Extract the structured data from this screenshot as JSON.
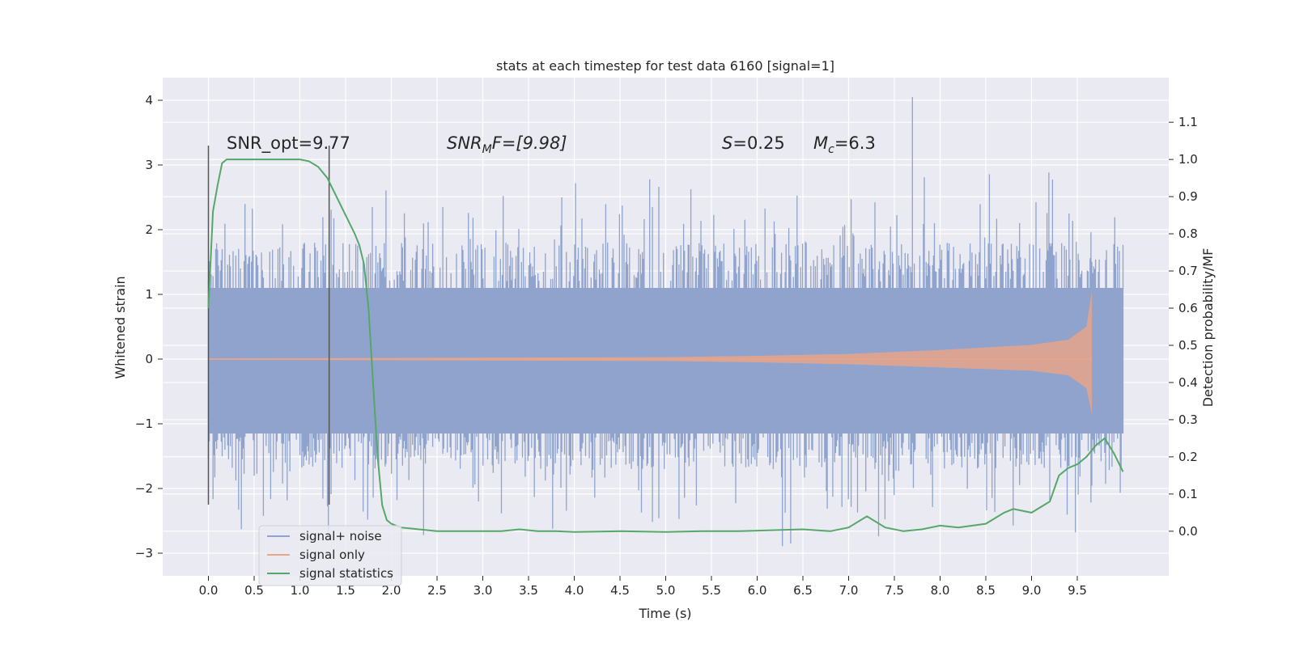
{
  "chart_data": {
    "type": "line",
    "title": "stats at each timestep for test data 6160 [signal=1]",
    "xlabel": "Time (s)",
    "ylabel": "Whitened strain",
    "y2label": "Detection probability/MF",
    "xlim": [
      -0.5,
      10.5
    ],
    "ylim": [
      -3.35,
      4.35
    ],
    "y2lim": [
      -0.12,
      1.22
    ],
    "x_ticks": [
      0.0,
      0.5,
      1.0,
      1.5,
      2.0,
      2.5,
      3.0,
      3.5,
      4.0,
      4.5,
      5.0,
      5.5,
      6.0,
      6.5,
      7.0,
      7.5,
      8.0,
      8.5,
      9.0,
      9.5
    ],
    "x_tick_labels": [
      "0.0",
      "0.5",
      "1.0",
      "1.5",
      "2.0",
      "2.5",
      "3.0",
      "3.5",
      "4.0",
      "4.5",
      "5.0",
      "5.5",
      "6.0",
      "6.5",
      "7.0",
      "7.5",
      "8.0",
      "8.5",
      "9.0",
      "9.5"
    ],
    "y_ticks": [
      4,
      3,
      2,
      1,
      0,
      -1,
      -2,
      -3
    ],
    "y_tick_labels": [
      "4",
      "3",
      "2",
      "1",
      "0",
      "−1",
      "−2",
      "−3"
    ],
    "y2_ticks": [
      1.1,
      1.0,
      0.9,
      0.8,
      0.7,
      0.6,
      0.5,
      0.4,
      0.3,
      0.2,
      0.1,
      0.0
    ],
    "y2_tick_labels": [
      "1.1",
      "1.0",
      "0.9",
      "0.8",
      "0.7",
      "0.6",
      "0.5",
      "0.4",
      "0.3",
      "0.2",
      "0.1",
      "0.0"
    ],
    "grid": true,
    "legend_position": "lower-left",
    "annotations": {
      "snr_opt": "SNR_opt=9.77",
      "snr_mf_main": "SNR",
      "snr_mf_sub": "M",
      "snr_mf_rest": "F=[9.98]",
      "s_main": "S",
      "s_rest": "=0.25",
      "mc_main": "M",
      "mc_sub": "c",
      "mc_rest": "=6.3"
    },
    "vlines": [
      {
        "x": 0.0,
        "y_range": [
          -2.25,
          3.3
        ]
      },
      {
        "x": 1.32,
        "y_range": [
          -2.25,
          3.3
        ]
      }
    ],
    "series": [
      {
        "name": "signal+ noise",
        "color": "#8fa3cc",
        "x_range": [
          0.0,
          10.0
        ],
        "envelope": {
          "typical_max": 1.1,
          "typical_min": -1.15,
          "peak_max": 4.05,
          "peak_max_x": 7.7,
          "peak_min": -2.95
        }
      },
      {
        "name": "signal only",
        "color": "#e8a58a",
        "x_range": [
          0.0,
          9.66
        ],
        "amplitude": {
          "x": [
            0.0,
            5.0,
            6.0,
            7.0,
            8.0,
            9.0,
            9.4,
            9.6,
            9.66
          ],
          "upper": [
            0.01,
            0.03,
            0.05,
            0.08,
            0.14,
            0.22,
            0.3,
            0.5,
            1.05
          ],
          "lower": [
            -0.01,
            -0.03,
            -0.05,
            -0.08,
            -0.13,
            -0.18,
            -0.25,
            -0.45,
            -0.85
          ]
        }
      },
      {
        "name": "signal statistics",
        "color": "#55a868",
        "axis": "right",
        "x": [
          0.0,
          0.05,
          0.1,
          0.15,
          0.2,
          0.4,
          0.6,
          0.8,
          1.0,
          1.1,
          1.2,
          1.3,
          1.4,
          1.5,
          1.6,
          1.65,
          1.7,
          1.75,
          1.8,
          1.85,
          1.9,
          1.95,
          2.0,
          2.1,
          2.3,
          2.5,
          2.8,
          3.0,
          3.2,
          3.4,
          3.6,
          3.8,
          4.0,
          4.5,
          5.0,
          5.4,
          5.8,
          6.2,
          6.5,
          6.8,
          7.0,
          7.2,
          7.4,
          7.6,
          7.8,
          8.0,
          8.2,
          8.5,
          8.7,
          8.8,
          9.0,
          9.2,
          9.3,
          9.4,
          9.5,
          9.6,
          9.7,
          9.8,
          9.9,
          10.0
        ],
        "values": [
          0.6,
          0.86,
          0.93,
          0.99,
          1.0,
          1.0,
          1.0,
          1.0,
          1.0,
          0.995,
          0.98,
          0.95,
          0.9,
          0.85,
          0.8,
          0.77,
          0.72,
          0.6,
          0.4,
          0.2,
          0.07,
          0.03,
          0.02,
          0.01,
          0.005,
          0.0,
          0.0,
          0.0,
          0.0,
          0.005,
          0.0,
          0.0,
          -0.002,
          0.0,
          -0.002,
          0.0,
          0.0,
          0.003,
          0.005,
          0.0,
          0.01,
          0.04,
          0.01,
          0.0,
          0.005,
          0.015,
          0.01,
          0.02,
          0.05,
          0.06,
          0.05,
          0.08,
          0.15,
          0.17,
          0.18,
          0.2,
          0.23,
          0.25,
          0.21,
          0.16
        ]
      }
    ]
  }
}
